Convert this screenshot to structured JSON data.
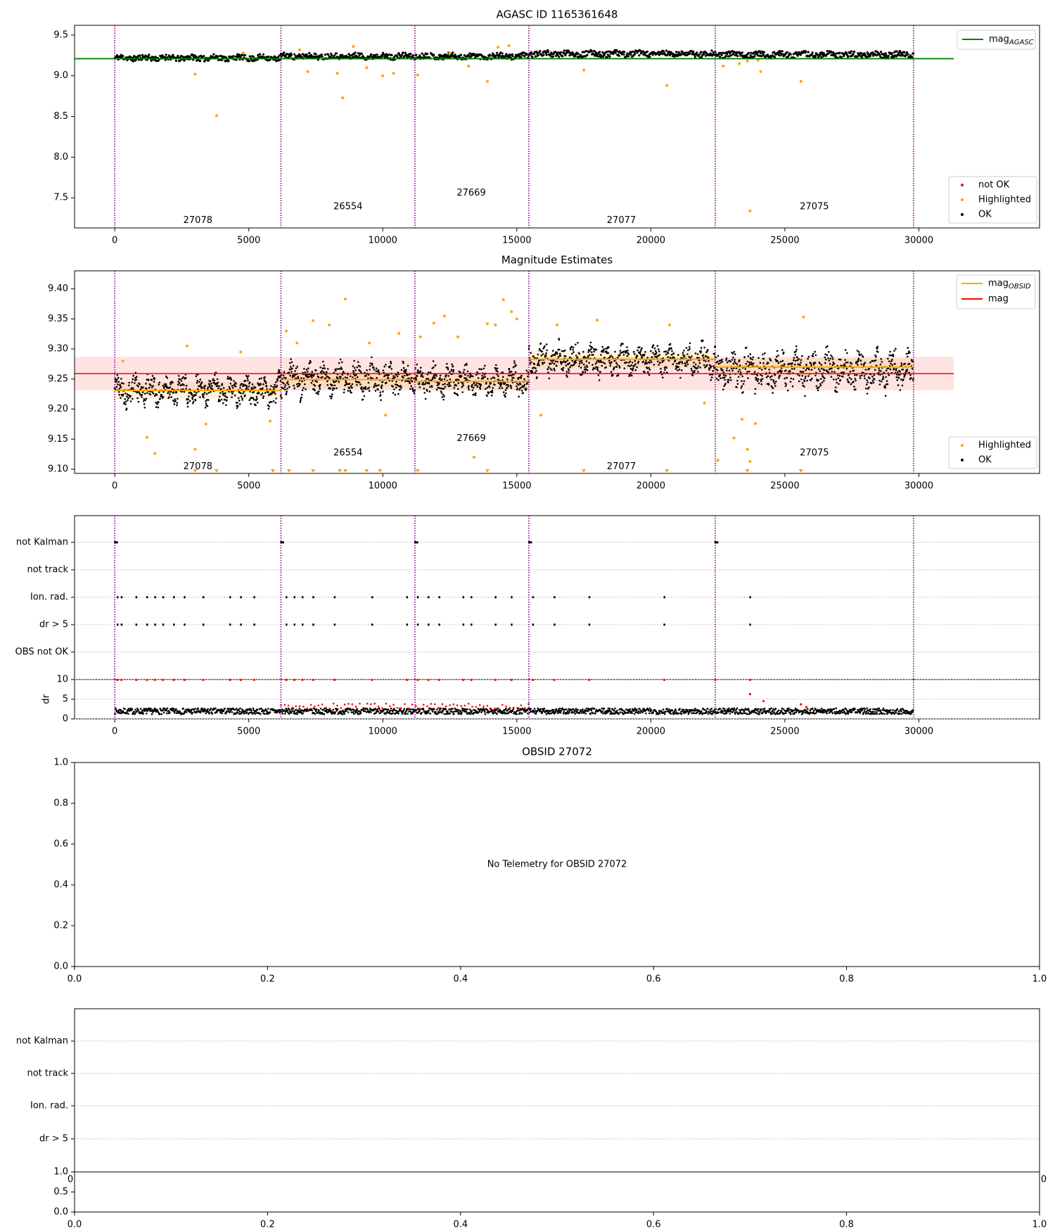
{
  "chart_data": [
    {
      "id": "mag_agasc",
      "type": "scatter",
      "title": "AGASC ID 1165361648",
      "xlim": [
        -1500,
        34500
      ],
      "ylim": [
        7.13,
        9.62
      ],
      "xticks": [
        0,
        5000,
        10000,
        15000,
        20000,
        25000,
        30000
      ],
      "xtick_labels": [
        "0",
        "5000",
        "10000",
        "15000",
        "20000",
        "25000",
        "30000"
      ],
      "yticks": [
        7.5,
        8.0,
        8.5,
        9.0,
        9.5
      ],
      "ytick_labels": [
        "7.5",
        "8.0",
        "8.5",
        "9.0",
        "9.5"
      ],
      "obsid_boundaries": [
        0,
        6200,
        11200,
        15450,
        22400,
        29800
      ],
      "obsid_labels": [
        {
          "text": "27078",
          "x": 3100,
          "y": 7.22
        },
        {
          "text": "26554",
          "x": 8700,
          "y": 7.39
        },
        {
          "text": "27669",
          "x": 13300,
          "y": 7.56
        },
        {
          "text": "27077",
          "x": 18900,
          "y": 7.22
        },
        {
          "text": "27075",
          "x": 26100,
          "y": 7.39
        }
      ],
      "segments": [
        {
          "x0": 0,
          "x1": 6200,
          "level": 9.22
        },
        {
          "x0": 6200,
          "x1": 11200,
          "level": 9.24
        },
        {
          "x0": 11200,
          "x1": 15450,
          "level": 9.24
        },
        {
          "x0": 15450,
          "x1": 22400,
          "level": 9.27
        },
        {
          "x0": 22400,
          "x1": 29800,
          "level": 9.26
        }
      ],
      "reference_line": {
        "name": "mag_AGASC",
        "y": 9.21,
        "x0": -1500,
        "x1": 31300,
        "color": "#008000"
      },
      "highlighted": [
        [
          3000,
          9.02
        ],
        [
          3800,
          8.51
        ],
        [
          4800,
          9.28
        ],
        [
          6900,
          9.32
        ],
        [
          7200,
          9.05
        ],
        [
          8300,
          9.03
        ],
        [
          8500,
          8.73
        ],
        [
          8900,
          9.36
        ],
        [
          9400,
          9.1
        ],
        [
          10000,
          9.0
        ],
        [
          10400,
          9.03
        ],
        [
          11300,
          9.01
        ],
        [
          12500,
          9.28
        ],
        [
          13200,
          9.12
        ],
        [
          13900,
          8.93
        ],
        [
          14300,
          9.35
        ],
        [
          14700,
          9.37
        ],
        [
          17500,
          9.07
        ],
        [
          20600,
          8.88
        ],
        [
          22700,
          9.12
        ],
        [
          23300,
          9.15
        ],
        [
          23600,
          9.18
        ],
        [
          23700,
          7.34
        ],
        [
          24000,
          9.19
        ],
        [
          24100,
          9.05
        ],
        [
          25600,
          8.93
        ]
      ],
      "legend": [
        "not OK",
        "Highlighted",
        "OK"
      ],
      "legend_line": [
        "mag_AGASC"
      ],
      "legend_placement": "lower-right"
    },
    {
      "id": "mag_estimates",
      "type": "scatter",
      "title": "Magnitude Estimates",
      "xlim": [
        -1500,
        34500
      ],
      "ylim": [
        9.093,
        9.43
      ],
      "xticks": [
        0,
        5000,
        10000,
        15000,
        20000,
        25000,
        30000
      ],
      "xtick_labels": [
        "0",
        "5000",
        "10000",
        "15000",
        "20000",
        "25000",
        "30000"
      ],
      "yticks": [
        9.1,
        9.15,
        9.2,
        9.25,
        9.3,
        9.35,
        9.4
      ],
      "ytick_labels": [
        "9.10",
        "9.15",
        "9.20",
        "9.25",
        "9.30",
        "9.35",
        "9.40"
      ],
      "obsid_boundaries": [
        0,
        6200,
        11200,
        15450,
        22400,
        29800
      ],
      "obsid_labels": [
        {
          "text": "27078",
          "x": 3100,
          "y": 9.104
        },
        {
          "text": "26554",
          "x": 8700,
          "y": 9.127
        },
        {
          "text": "27669",
          "x": 13300,
          "y": 9.151
        },
        {
          "text": "27077",
          "x": 18900,
          "y": 9.104
        },
        {
          "text": "27075",
          "x": 26100,
          "y": 9.127
        }
      ],
      "segments": [
        {
          "x0": 0,
          "x1": 6200,
          "level": 9.231,
          "amp": 0.022
        },
        {
          "x0": 6200,
          "x1": 11200,
          "level": 9.25,
          "amp": 0.024
        },
        {
          "x0": 11200,
          "x1": 15450,
          "level": 9.247,
          "amp": 0.022
        },
        {
          "x0": 15450,
          "x1": 22400,
          "level": 9.282,
          "amp": 0.022
        },
        {
          "x0": 22400,
          "x1": 29800,
          "level": 9.265,
          "amp": 0.028
        }
      ],
      "obsid_mag_lines": [
        {
          "x0": 0,
          "x1": 6200,
          "y": 9.231
        },
        {
          "x0": 6200,
          "x1": 11200,
          "y": 9.249
        },
        {
          "x0": 11200,
          "x1": 15450,
          "y": 9.246
        },
        {
          "x0": 15450,
          "x1": 22400,
          "y": 9.283
        },
        {
          "x0": 22400,
          "x1": 29800,
          "y": 9.27
        }
      ],
      "mag_line": {
        "y": 9.259,
        "x0": -1500,
        "x1": 31300,
        "band": [
          9.231,
          9.287
        ],
        "color": "#ff0000"
      },
      "highlighted": [
        [
          300,
          9.28
        ],
        [
          1200,
          9.153
        ],
        [
          1500,
          9.126
        ],
        [
          2700,
          9.305
        ],
        [
          3000,
          9.133
        ],
        [
          3400,
          9.175
        ],
        [
          4700,
          9.295
        ],
        [
          5800,
          9.18
        ],
        [
          6400,
          9.33
        ],
        [
          6800,
          9.31
        ],
        [
          7400,
          9.347
        ],
        [
          8000,
          9.34
        ],
        [
          8600,
          9.383
        ],
        [
          9500,
          9.31
        ],
        [
          10100,
          9.19
        ],
        [
          10600,
          9.326
        ],
        [
          11400,
          9.32
        ],
        [
          11900,
          9.343
        ],
        [
          12300,
          9.355
        ],
        [
          12800,
          9.32
        ],
        [
          13400,
          9.12
        ],
        [
          13900,
          9.342
        ],
        [
          14200,
          9.34
        ],
        [
          14500,
          9.382
        ],
        [
          14800,
          9.362
        ],
        [
          15000,
          9.35
        ],
        [
          15900,
          9.19
        ],
        [
          16500,
          9.34
        ],
        [
          18000,
          9.348
        ],
        [
          20700,
          9.34
        ],
        [
          22000,
          9.21
        ],
        [
          22500,
          9.115
        ],
        [
          23100,
          9.152
        ],
        [
          23400,
          9.183
        ],
        [
          23600,
          9.133
        ],
        [
          23700,
          9.113
        ],
        [
          23900,
          9.176
        ],
        [
          25700,
          9.353
        ]
      ],
      "highlighted_clipped_x": [
        3000,
        3800,
        5900,
        6500,
        7400,
        8400,
        8600,
        9400,
        9900,
        11300,
        13900,
        17500,
        20600,
        23600,
        25600
      ],
      "legend": [
        "Highlighted",
        "OK"
      ],
      "legend_line": [
        "mag_OBSID",
        "mag"
      ],
      "legend_placement": "lower-right"
    },
    {
      "id": "flags",
      "type": "scatter",
      "xlim": [
        -1500,
        34500
      ],
      "category_ticks": [
        "not Kalman",
        "not track",
        "Ion. rad.",
        "dr > 5",
        "OBS not OK"
      ],
      "xticks": [
        0,
        5000,
        10000,
        15000,
        20000,
        25000,
        30000
      ],
      "obsid_boundaries": [
        0,
        6200,
        11200,
        15450,
        22400,
        29800
      ],
      "not_kalman_x": [
        0,
        6200,
        11200,
        15450,
        22400
      ],
      "ion_rad_x": [
        100,
        250,
        800,
        1200,
        1500,
        1800,
        2200,
        2600,
        3300,
        4300,
        4700,
        5200,
        6400,
        6700,
        7000,
        7400,
        8200,
        9600,
        10900,
        11300,
        11700,
        12100,
        13000,
        13300,
        14200,
        14800,
        15600,
        16400,
        17700,
        20500,
        23700
      ],
      "dr_gt_5_x": [
        100,
        250,
        800,
        1200,
        1500,
        1800,
        2200,
        2600,
        3300,
        4300,
        4700,
        5200,
        6400,
        6700,
        7000,
        7400,
        8200,
        9600,
        10900,
        11300,
        11700,
        12100,
        13000,
        13300,
        14200,
        14800,
        15600,
        16400,
        17700,
        20500,
        23700
      ]
    },
    {
      "id": "dr",
      "type": "scatter",
      "ylabel": "dr",
      "xlim": [
        -1500,
        34500
      ],
      "ylim": [
        0,
        10
      ],
      "yticks": [
        0,
        5,
        10
      ],
      "ytick_labels": [
        "0",
        "5",
        "10"
      ],
      "xticks": [
        0,
        5000,
        10000,
        15000,
        20000,
        25000,
        30000
      ],
      "xtick_labels": [
        "0",
        "5000",
        "10000",
        "15000",
        "20000",
        "25000",
        "30000"
      ],
      "red_top_x": [
        100,
        250,
        800,
        1200,
        1500,
        1800,
        2200,
        2600,
        3300,
        4300,
        4700,
        5200,
        6400,
        6700,
        7000,
        7400,
        8200,
        9600,
        10900,
        11300,
        11700,
        12100,
        13000,
        13300,
        14200,
        14800,
        15600,
        16400,
        17700,
        20500,
        22400,
        23700
      ],
      "red_points": [
        [
          23700,
          6.3
        ],
        [
          24200,
          4.5
        ],
        [
          25600,
          3.7
        ],
        [
          25800,
          3.0
        ]
      ]
    },
    {
      "id": "obsid_panel",
      "type": "scatter",
      "title": "OBSID 27072",
      "message": "No Telemetry for OBSID 27072",
      "xlim": [
        0,
        1
      ],
      "ylim": [
        0,
        1
      ],
      "xtick_labels": [
        "0.0",
        "0.2",
        "0.4",
        "0.6",
        "0.8",
        "1.0"
      ],
      "ytick_labels": [
        "0.0",
        "0.2",
        "0.4",
        "0.6",
        "0.8",
        "1.0"
      ]
    },
    {
      "id": "obsid_flags",
      "type": "scatter",
      "category_ticks": [
        "not Kalman",
        "not track",
        "Ion. rad.",
        "dr > 5"
      ],
      "hidden_corner_labels": [
        "0",
        "0"
      ]
    },
    {
      "id": "obsid_dr",
      "type": "scatter",
      "xlim": [
        0,
        1
      ],
      "ylim": [
        0,
        1
      ],
      "xtick_labels": [
        "0.0",
        "0.2",
        "0.4",
        "0.6",
        "0.8",
        "1.0"
      ],
      "ytick_labels": [
        "0.0",
        "0.5",
        "1.0"
      ]
    }
  ],
  "colors": {
    "ok": "#000000",
    "highlighted": "#ffa500",
    "not_ok": "#ff0000",
    "agasc_line": "#008000",
    "obsid_line": "#ffa500",
    "mag_line": "#ff0000",
    "boundary": "#800080"
  },
  "legend_math": {
    "agasc_sub": "AGASC",
    "obsid_sub": "OBSID",
    "base": "mag"
  }
}
